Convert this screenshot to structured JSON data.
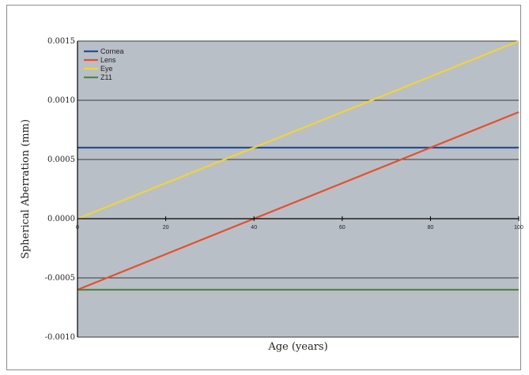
{
  "chart_data": {
    "type": "line",
    "title": "",
    "xlabel": "Age (years)",
    "ylabel": "Spherical Aberration (mm)",
    "xlim": [
      0,
      100
    ],
    "ylim": [
      -0.001,
      0.0015
    ],
    "x_ticks": [
      0,
      20,
      40,
      60,
      80,
      100
    ],
    "x_tick_labels": [
      "0",
      "20",
      "40",
      "60",
      "80",
      "100"
    ],
    "y_ticks": [
      -0.001,
      -0.0005,
      0.0,
      0.0005,
      0.001,
      0.0015
    ],
    "y_tick_labels": [
      "-0.0010",
      "-0.0005",
      "0.0000",
      "0.0005",
      "0.0010",
      "0.0015"
    ],
    "grid": "horizontal",
    "legend_position": "top-left",
    "plot_background": "#b9bfc6",
    "series": [
      {
        "name": "Cornea",
        "color": "#1f4fa3",
        "x": [
          0,
          100
        ],
        "y": [
          0.0006,
          0.0006
        ]
      },
      {
        "name": "Lens",
        "color": "#e3502f",
        "x": [
          0,
          100
        ],
        "y": [
          -0.0006,
          0.0009
        ]
      },
      {
        "name": "Eye",
        "color": "#f0d33c",
        "x": [
          0,
          100
        ],
        "y": [
          0.0,
          0.0015
        ]
      },
      {
        "name": "Z11",
        "color": "#4e8a3a",
        "x": [
          0,
          100
        ],
        "y": [
          -0.0006,
          -0.0006
        ]
      }
    ]
  }
}
